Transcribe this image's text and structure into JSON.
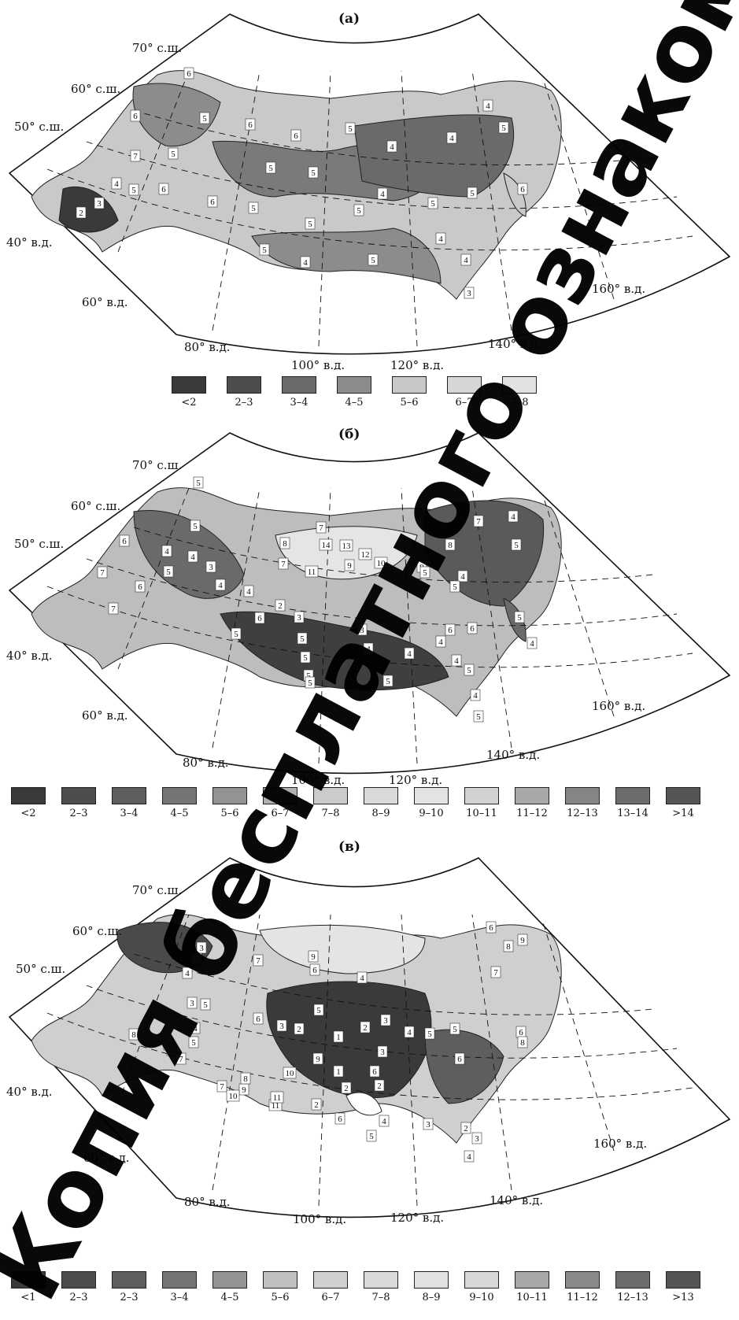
{
  "panels": [
    {
      "label": "(а)",
      "coords": {
        "lat70": "70° с.ш.",
        "lat60": "60° с.ш.",
        "lat50": "50° с.ш.",
        "lon40": "40° в.д.",
        "lon60": "60° в.д.",
        "lon80": "80° в.д.",
        "lon100": "100° в.д.",
        "lon120": "120° в.д.",
        "lon140": "140° в.д.",
        "lon160": "160° в.д."
      },
      "region_numbers": [
        "6",
        "6",
        "5",
        "6",
        "6",
        "5",
        "7",
        "5",
        "4",
        "5",
        "6",
        "3",
        "2",
        "6",
        "5",
        "5",
        "5",
        "5",
        "5",
        "4",
        "4",
        "4",
        "5",
        "4",
        "5",
        "5",
        "4",
        "3",
        "4",
        "4",
        "5",
        "5",
        "6"
      ],
      "legend": [
        {
          "label": "<2",
          "color": "#3a3a3a"
        },
        {
          "label": "2–3",
          "color": "#4d4d4d"
        },
        {
          "label": "3–4",
          "color": "#6a6a6a"
        },
        {
          "label": "4–5",
          "color": "#8c8c8c"
        },
        {
          "label": "5–6",
          "color": "#c8c8c8"
        },
        {
          "label": "6–7",
          "color": "#d6d6d6"
        },
        {
          "label": "7–8",
          "color": "#e2e2e2"
        }
      ]
    },
    {
      "label": "(б)",
      "coords": {
        "lat70": "70° с.ш.",
        "lat60": "60° с.ш.",
        "lat50": "50° с.ш.",
        "lon40": "40° в.д.",
        "lon60": "60° в.д.",
        "lon80": "80° в.д.",
        "lon100": "100° в.д.",
        "lon120": "120° в.д.",
        "lon140": "140° в.д.",
        "lon160": "160° в.д."
      },
      "region_numbers": [
        "5",
        "5",
        "6",
        "4",
        "4",
        "3",
        "8",
        "7",
        "5",
        "7",
        "6",
        "7",
        "4",
        "4",
        "6",
        "5",
        "2",
        "3",
        "5",
        "5",
        "5",
        "4",
        "4",
        "5",
        "5",
        "3",
        "4",
        "5",
        "4",
        "5",
        "6",
        "7",
        "14",
        "13",
        "12",
        "11",
        "9",
        "10",
        "9",
        "8",
        "7",
        "4",
        "5",
        "5",
        "4",
        "5",
        "5",
        "4",
        "6",
        "4"
      ],
      "legend": [
        {
          "label": "<2",
          "color": "#3a3a3a"
        },
        {
          "label": "2–3",
          "color": "#4d4d4d"
        },
        {
          "label": "3–4",
          "color": "#5e5e5e"
        },
        {
          "label": "4–5",
          "color": "#757575"
        },
        {
          "label": "5–6",
          "color": "#939393"
        },
        {
          "label": "6–7",
          "color": "#b0b0b0"
        },
        {
          "label": "7–8",
          "color": "#cbcbcb"
        },
        {
          "label": "8–9",
          "color": "#d9d9d9"
        },
        {
          "label": "9–10",
          "color": "#e3e3e3"
        },
        {
          "label": "10–11",
          "color": "#d2d2d2"
        },
        {
          "label": "11–12",
          "color": "#a8a8a8"
        },
        {
          "label": "12–13",
          "color": "#858585"
        },
        {
          "label": "13–14",
          "color": "#6c6c6c"
        },
        {
          "label": ">14",
          "color": "#555555"
        }
      ]
    },
    {
      "label": "(в)",
      "coords": {
        "lat70": "70° с.ш.",
        "lat60": "60° с.ш.",
        "lat50": "50° с.ш.",
        "lon40": "40° в.д.",
        "lon60": "60° в.д.",
        "lon80": "80° в.д.",
        "lon100": "100° в.д.",
        "lon120": "120° в.д.",
        "lon140": "140° в.д.",
        "lon160": "160° в.д."
      },
      "region_numbers": [
        "3",
        "3",
        "4",
        "5",
        "3",
        "4",
        "5",
        "6",
        "7",
        "8",
        "8",
        "7",
        "9",
        "10",
        "11",
        "8",
        "7",
        "6",
        "5",
        "4",
        "6",
        "3",
        "2",
        "1",
        "1",
        "2",
        "2",
        "3",
        "2",
        "3",
        "4",
        "5",
        "6",
        "9",
        "10",
        "9",
        "11",
        "2",
        "6",
        "5",
        "6",
        "4",
        "3",
        "2",
        "3",
        "4",
        "6",
        "8",
        "9",
        "7",
        "5",
        "6",
        "8"
      ],
      "legend": [
        {
          "label": "<1",
          "color": "#3a3a3a"
        },
        {
          "label": "2–3",
          "color": "#4d4d4d"
        },
        {
          "label": "2–3",
          "color": "#5e5e5e"
        },
        {
          "label": "3–4",
          "color": "#757575"
        },
        {
          "label": "4–5",
          "color": "#939393"
        },
        {
          "label": "5–6",
          "color": "#c0c0c0"
        },
        {
          "label": "6–7",
          "color": "#d0d0d0"
        },
        {
          "label": "7–8",
          "color": "#dadada"
        },
        {
          "label": "8–9",
          "color": "#e2e2e2"
        },
        {
          "label": "9–10",
          "color": "#d8d8d8"
        },
        {
          "label": "10–11",
          "color": "#a8a8a8"
        },
        {
          "label": "11–12",
          "color": "#8a8a8a"
        },
        {
          "label": "12–13",
          "color": "#6c6c6c"
        },
        {
          "label": ">13",
          "color": "#555555"
        }
      ]
    }
  ],
  "watermark": "Копия бесплатного ознакомления"
}
